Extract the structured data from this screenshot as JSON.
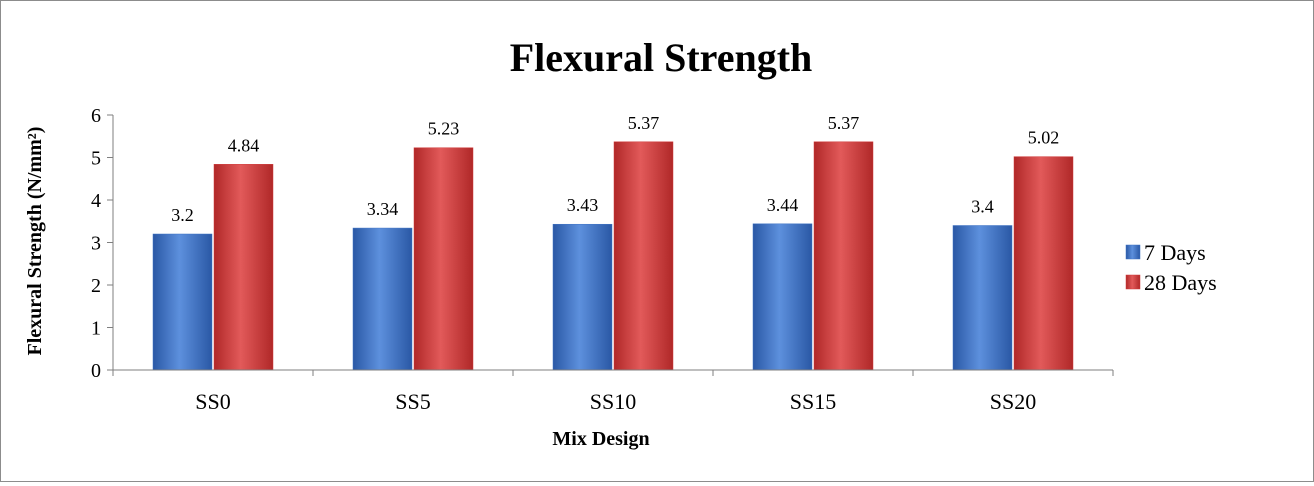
{
  "chart_data": {
    "type": "bar",
    "title": "Flexural Strength",
    "xlabel": "Mix Design",
    "ylabel": "Flexural Strength (N/mm²)",
    "categories": [
      "SS0",
      "SS5",
      "SS10",
      "SS15",
      "SS20"
    ],
    "series": [
      {
        "name": "7 Days",
        "values": [
          3.2,
          3.34,
          3.43,
          3.44,
          3.4
        ],
        "color": "#3f73c4"
      },
      {
        "name": "28 Days",
        "values": [
          4.84,
          5.23,
          5.37,
          5.37,
          5.02
        ],
        "color": "#d03b3b"
      }
    ],
    "ylim": [
      0,
      6
    ],
    "yticks": [
      0,
      1,
      2,
      3,
      4,
      5,
      6
    ],
    "grid": false,
    "data_labels": true,
    "legend_position": "right"
  }
}
